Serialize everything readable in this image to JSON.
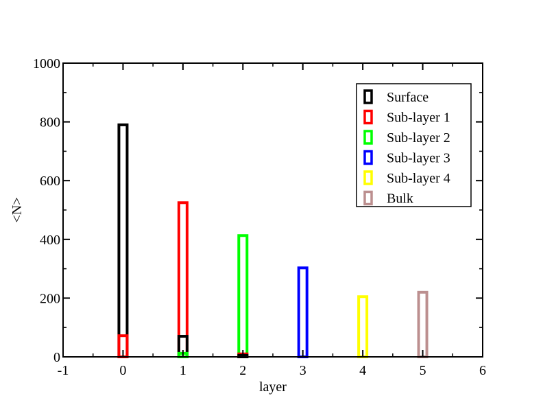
{
  "chart_data": {
    "type": "bar",
    "title": "",
    "xlabel": "layer",
    "ylabel": "<N>",
    "xlim": [
      -1,
      6
    ],
    "ylim": [
      0,
      1000
    ],
    "x_ticks": [
      "-1",
      "0",
      "1",
      "2",
      "3",
      "4",
      "5",
      "6"
    ],
    "y_ticks": [
      "0",
      "200",
      "400",
      "600",
      "800",
      "1000"
    ],
    "grid": false,
    "legend_position": "top-right",
    "series": [
      {
        "name": "Surface",
        "color": "#000000",
        "points": [
          {
            "x": 0,
            "y": 790
          },
          {
            "x": 1,
            "y": 70
          },
          {
            "x": 2,
            "y": 5
          }
        ]
      },
      {
        "name": "Sub-layer 1",
        "color": "#ff0000",
        "points": [
          {
            "x": 0,
            "y": 72
          },
          {
            "x": 1,
            "y": 525
          },
          {
            "x": 2,
            "y": 10
          }
        ]
      },
      {
        "name": "Sub-layer 2",
        "color": "#00ff00",
        "points": [
          {
            "x": 1,
            "y": 12
          },
          {
            "x": 2,
            "y": 413
          }
        ]
      },
      {
        "name": "Sub-layer 3",
        "color": "#0000ff",
        "points": [
          {
            "x": 3,
            "y": 303
          }
        ]
      },
      {
        "name": "Sub-layer 4",
        "color": "#ffff00",
        "points": [
          {
            "x": 4,
            "y": 205
          }
        ]
      },
      {
        "name": "Bulk",
        "color": "#bc8f8f",
        "points": [
          {
            "x": 5,
            "y": 220
          }
        ]
      }
    ]
  }
}
